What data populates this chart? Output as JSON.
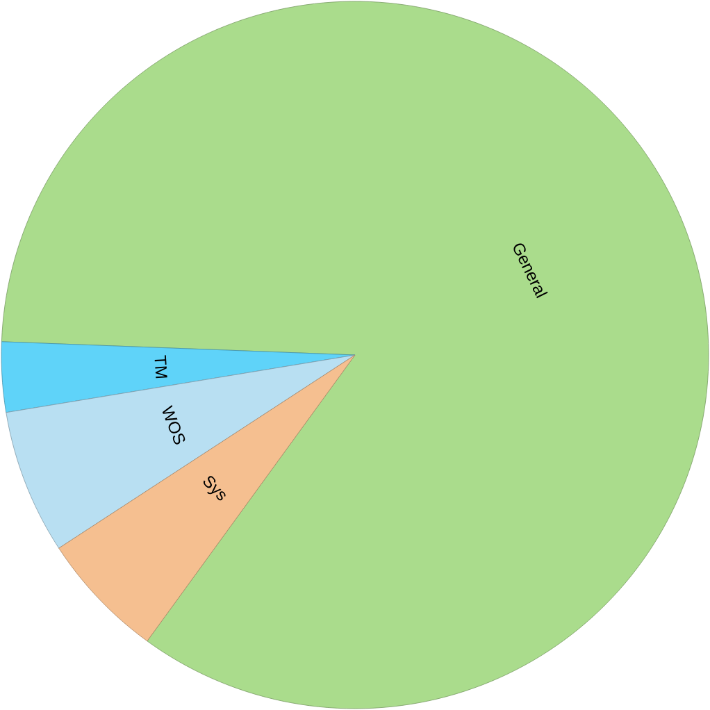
{
  "chart_data": {
    "type": "pie",
    "categories": [
      "General",
      "TM",
      "WOS",
      "Sys"
    ],
    "values": [
      84.4,
      3.2,
      6.6,
      5.8
    ],
    "colors": [
      "#aadc8c",
      "#5fd3f9",
      "#b8dff2",
      "#f5bf90"
    ]
  }
}
